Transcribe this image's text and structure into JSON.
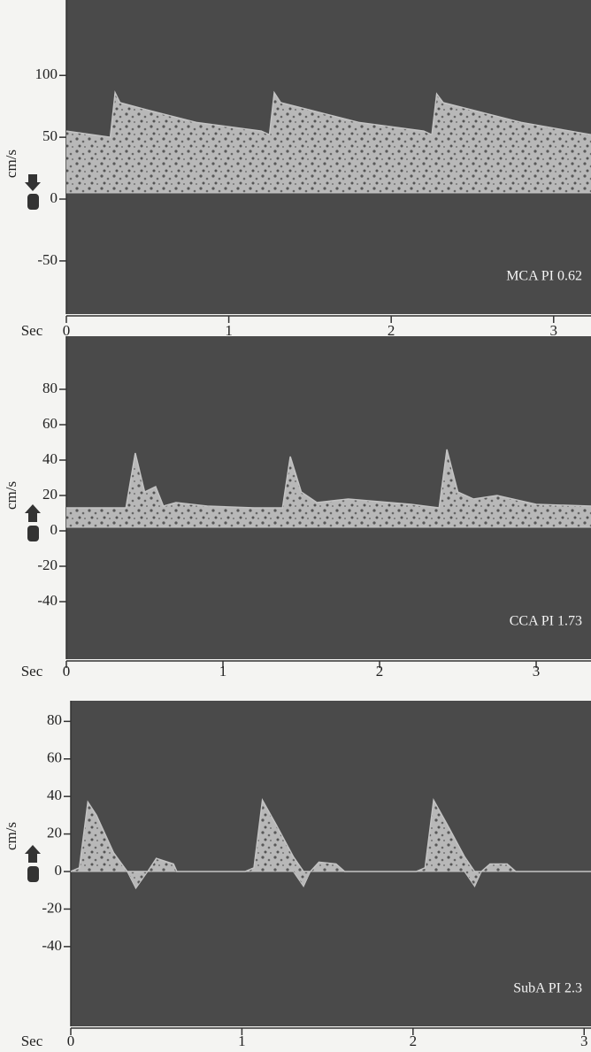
{
  "chart_data": [
    {
      "type": "area",
      "annotation": "MCA PI 0.62",
      "ylabel": "cm/s",
      "xlabel": "Sec",
      "color": "#c4c4c4",
      "background": "#4a4a4a",
      "x": [
        0,
        0.27,
        0.3,
        0.33,
        0.5,
        0.8,
        1.2,
        1.25,
        1.28,
        1.32,
        1.5,
        1.8,
        2.2,
        2.25,
        2.28,
        2.32,
        2.5,
        2.8,
        3.23
      ],
      "upper": [
        55,
        50,
        86,
        78,
        72,
        62,
        55,
        52,
        86,
        78,
        72,
        62,
        55,
        52,
        85,
        78,
        72,
        62,
        52
      ],
      "lower": [
        5,
        5,
        5,
        5,
        5,
        5,
        5,
        5,
        5,
        5,
        5,
        5,
        5,
        5,
        5,
        5,
        5,
        5,
        5
      ],
      "xlim": [
        0,
        3.23
      ],
      "ylim": [
        -93,
        161
      ],
      "xticks": [
        0,
        1,
        2,
        3
      ],
      "yticks": [
        100,
        50,
        0,
        -50
      ]
    },
    {
      "type": "area",
      "annotation": "CCA PI 1.73",
      "ylabel": "cm/s",
      "xlabel": "Sec",
      "color": "#c4c4c4",
      "background": "#4a4a4a",
      "x": [
        0,
        0.38,
        0.44,
        0.5,
        0.57,
        0.62,
        0.7,
        0.9,
        1.2,
        1.38,
        1.43,
        1.5,
        1.6,
        1.8,
        2.2,
        2.38,
        2.43,
        2.5,
        2.6,
        2.75,
        3.0,
        3.35
      ],
      "upper": [
        13,
        13,
        44,
        22,
        25,
        14,
        16,
        14,
        13,
        13,
        42,
        22,
        16,
        18,
        15,
        13,
        46,
        22,
        18,
        20,
        15,
        14
      ],
      "lower": [
        2,
        2,
        2,
        2,
        2,
        2,
        2,
        2,
        2,
        2,
        2,
        2,
        2,
        2,
        2,
        2,
        2,
        2,
        2,
        2,
        2,
        2
      ],
      "xlim": [
        0,
        3.35
      ],
      "ylim": [
        -72.5,
        110
      ],
      "xticks": [
        0,
        1,
        2,
        3
      ],
      "yticks": [
        80,
        60,
        40,
        20,
        0,
        -20,
        -40
      ]
    },
    {
      "type": "area",
      "annotation": "SubA PI 2.3",
      "ylabel": "cm/s",
      "xlabel": "Sec",
      "color": "#c4c4c4",
      "background": "#4a4a4a",
      "x": [
        0,
        0.05,
        0.1,
        0.15,
        0.25,
        0.33,
        0.38,
        0.45,
        0.5,
        0.6,
        0.62,
        1.02,
        1.07,
        1.12,
        1.2,
        1.3,
        1.36,
        1.4,
        1.45,
        1.55,
        1.6,
        2.02,
        2.07,
        2.12,
        2.2,
        2.3,
        2.36,
        2.4,
        2.45,
        2.55,
        2.6,
        3.04
      ],
      "upper": [
        0,
        2,
        37,
        30,
        10,
        0,
        0,
        0,
        7,
        4,
        0,
        0,
        2,
        38,
        25,
        8,
        0,
        0,
        5,
        4,
        0,
        0,
        2,
        38,
        25,
        8,
        0,
        0,
        4,
        4,
        0,
        0
      ],
      "lower": [
        0,
        0,
        0,
        0,
        0,
        0,
        -9,
        0,
        0,
        0,
        0,
        0,
        0,
        0,
        0,
        0,
        -8,
        0,
        0,
        0,
        0,
        0,
        0,
        0,
        0,
        0,
        -8,
        0,
        0,
        0,
        0,
        0
      ],
      "xlim": [
        0,
        3.04
      ],
      "ylim": [
        -82.5,
        91
      ],
      "xticks": [
        0,
        1,
        2,
        3
      ],
      "yticks": [
        80,
        60,
        40,
        20,
        0,
        -20,
        -40
      ]
    }
  ]
}
